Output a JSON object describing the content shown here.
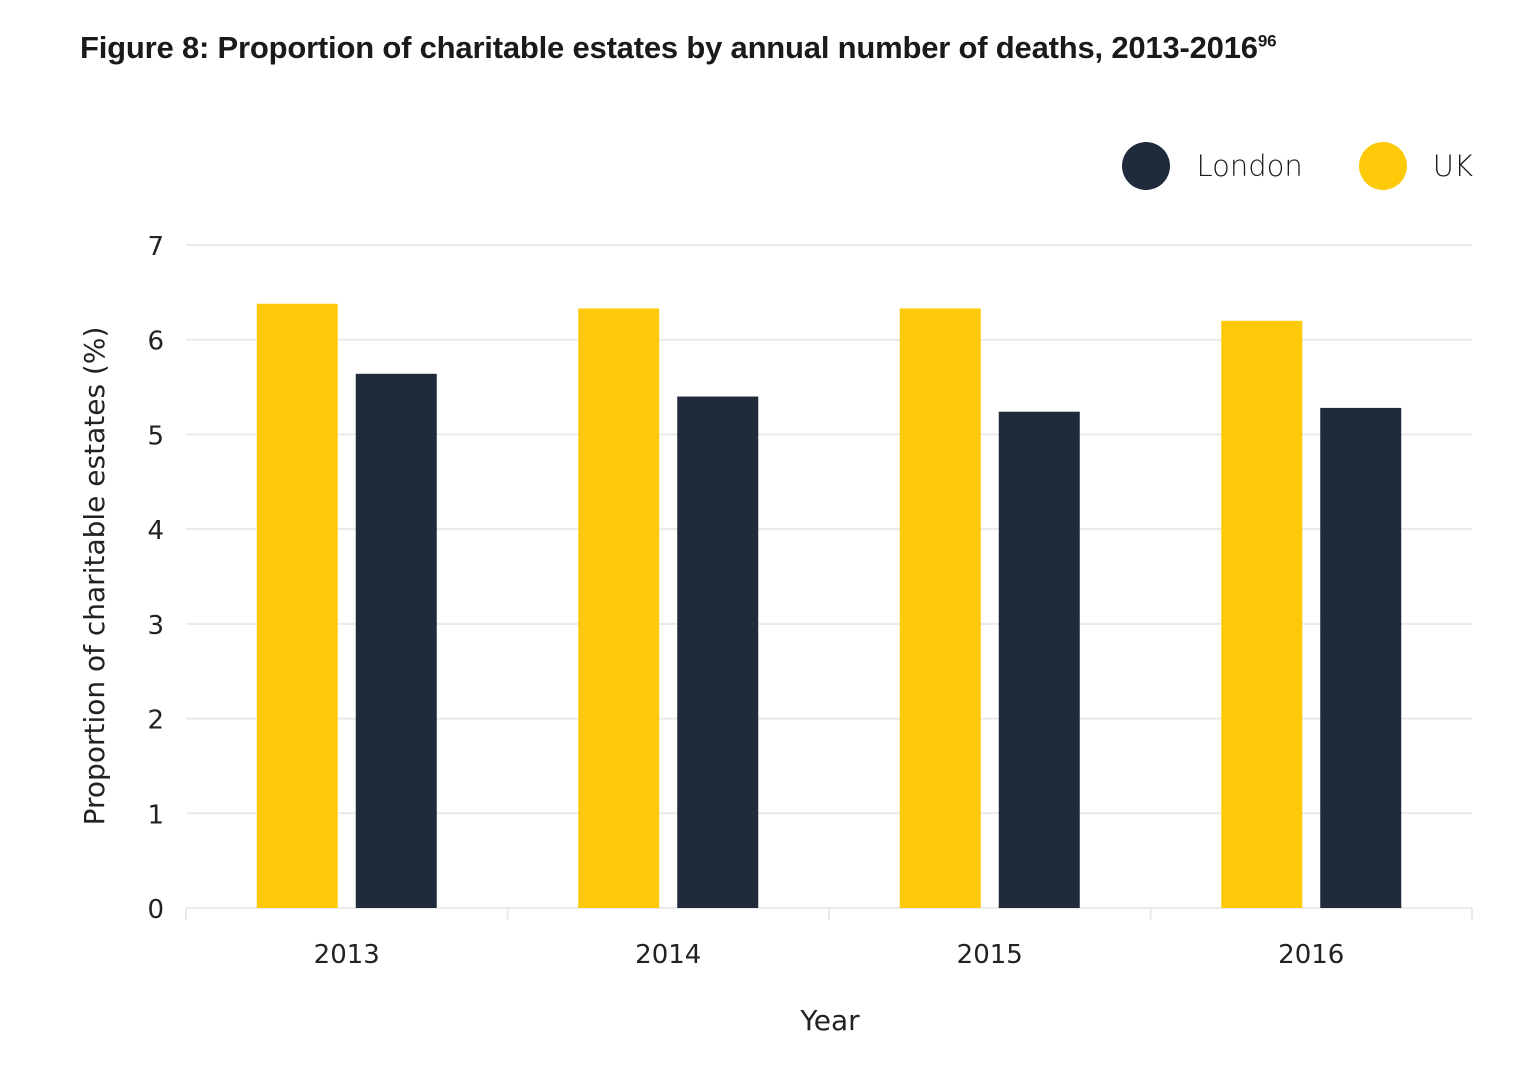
{
  "title": {
    "text": "Figure 8: Proportion of charitable estates by annual number of deaths, 2013-2016",
    "footnote": "96"
  },
  "colors": {
    "London": "#1f2a3b",
    "UK": "#fdc908",
    "grid": "#eaeaea"
  },
  "legend": [
    {
      "label": "London",
      "color": "#1f2a3b"
    },
    {
      "label": "UK",
      "color": "#fdc908"
    }
  ],
  "chart_data": {
    "type": "bar",
    "title": "Figure 8: Proportion of charitable estates by annual number of deaths, 2013-2016",
    "xlabel": "Year",
    "ylabel": "Proportion of charitable estates (%)",
    "categories": [
      "2013",
      "2014",
      "2015",
      "2016"
    ],
    "series": [
      {
        "name": "UK",
        "color": "#fdc908",
        "values": [
          6.38,
          6.33,
          6.33,
          6.2
        ]
      },
      {
        "name": "London",
        "color": "#1f2a3b",
        "values": [
          5.64,
          5.4,
          5.24,
          5.28
        ]
      }
    ],
    "ylim": [
      0,
      7
    ],
    "yticks": [
      0,
      1,
      2,
      3,
      4,
      5,
      6,
      7
    ],
    "grid": true,
    "legend_position": "top-right"
  }
}
